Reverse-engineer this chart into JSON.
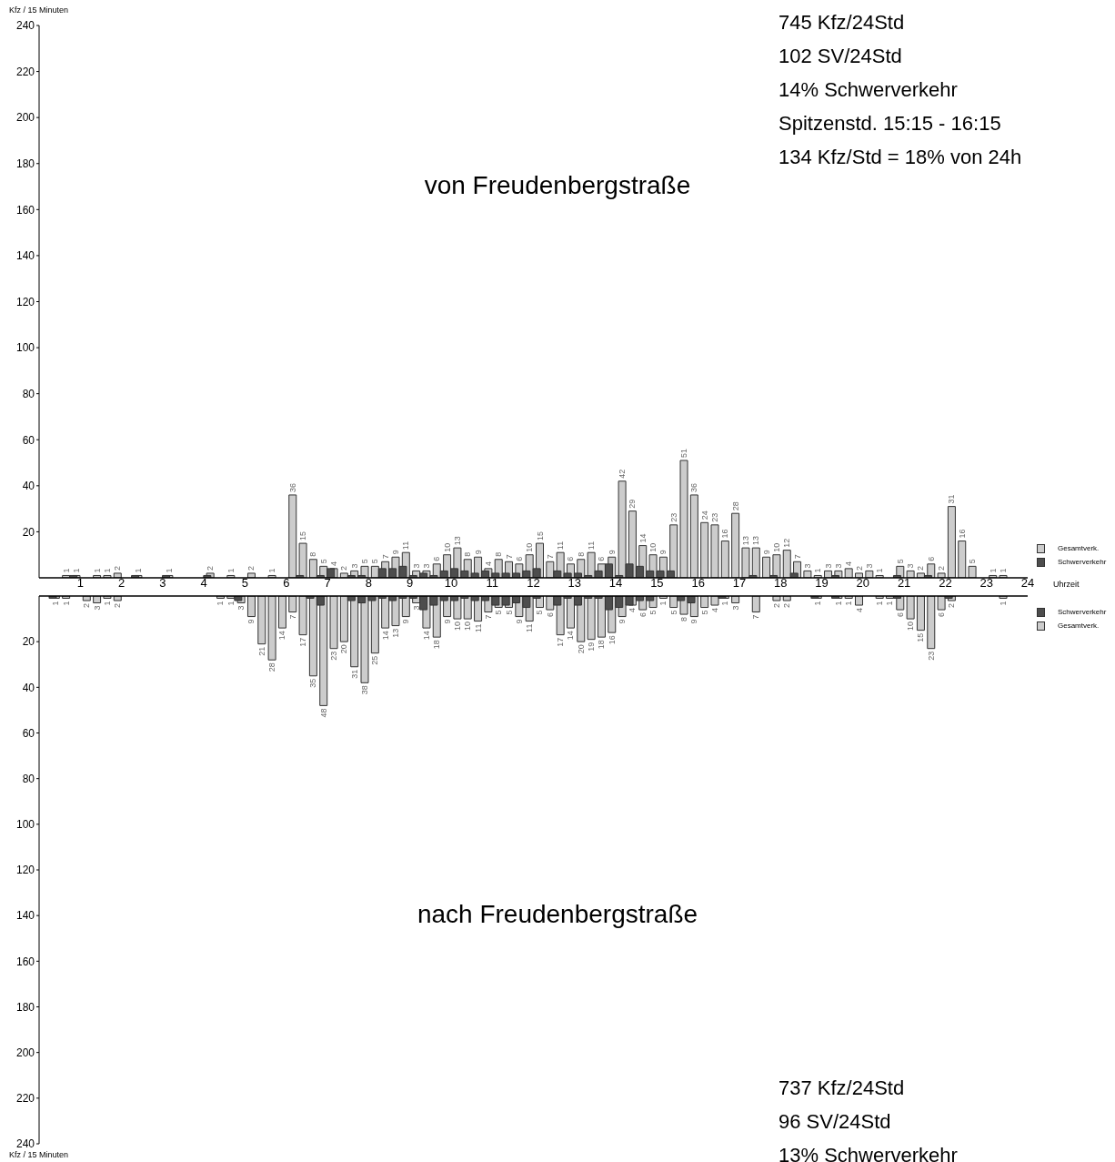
{
  "chart_data": [
    {
      "type": "bar",
      "title": "von Freudenbergstraße",
      "ylabel": "Kfz / 15 Minuten",
      "xlabel": "Uhrzeit",
      "annotations": [
        "745 Kfz/24Std",
        "102 SV/24Std",
        "14% Schwerverkehr",
        "Spitzenstd. 15:15 - 16:15",
        "134 Kfz/Std = 18% von 24h"
      ],
      "x": [
        0.125,
        0.375,
        0.625,
        0.875,
        1.125,
        1.375,
        1.625,
        1.875,
        2.125,
        2.375,
        2.625,
        2.875,
        3.125,
        3.375,
        3.625,
        3.875,
        4.125,
        4.375,
        4.625,
        4.875,
        5.125,
        5.375,
        5.625,
        5.875,
        6.125,
        6.375,
        6.625,
        6.875,
        7.125,
        7.375,
        7.625,
        7.875,
        8.125,
        8.375,
        8.625,
        8.875,
        9.125,
        9.375,
        9.625,
        9.875,
        10.125,
        10.375,
        10.625,
        10.875,
        11.125,
        11.375,
        11.625,
        11.875,
        12.125,
        12.375,
        12.625,
        12.875,
        13.125,
        13.375,
        13.625,
        13.875,
        14.125,
        14.375,
        14.625,
        14.875,
        15.125,
        15.375,
        15.625,
        15.875,
        16.125,
        16.375,
        16.625,
        16.875,
        17.125,
        17.375,
        17.625,
        17.875,
        18.125,
        18.375,
        18.625,
        18.875,
        19.125,
        19.375,
        19.625,
        19.875,
        20.125,
        20.375,
        20.625,
        20.875,
        21.125,
        21.375,
        21.625,
        21.875,
        22.125,
        22.375,
        22.625,
        22.875,
        23.125,
        23.375,
        23.625,
        23.875
      ],
      "series": [
        {
          "name": "Gesamtverk.",
          "type": "bar",
          "color": "#cccccc",
          "values": [
            0,
            0,
            1,
            1,
            0,
            1,
            1,
            2,
            0,
            1,
            0,
            0,
            1,
            0,
            0,
            0,
            2,
            0,
            1,
            0,
            2,
            0,
            1,
            0,
            36,
            15,
            8,
            5,
            4,
            2,
            3,
            5,
            5,
            7,
            9,
            11,
            3,
            3,
            6,
            10,
            13,
            8,
            9,
            4,
            8,
            7,
            6,
            10,
            15,
            7,
            11,
            6,
            8,
            11,
            6,
            9,
            42,
            29,
            14,
            10,
            9,
            23,
            51,
            36,
            24,
            23,
            16,
            28,
            13,
            13,
            9,
            10,
            12,
            7,
            3,
            1,
            3,
            3,
            4,
            2,
            3,
            1,
            0,
            5,
            3,
            2,
            6,
            2,
            31,
            16,
            5,
            0,
            1,
            1,
            0,
            0
          ],
          "value_labels": [
            null,
            null,
            "1",
            "1",
            null,
            "1",
            "1",
            "2",
            null,
            "1",
            null,
            null,
            "1",
            null,
            null,
            null,
            "2",
            null,
            "1",
            null,
            "2",
            null,
            "1",
            null,
            "36",
            "15",
            "8",
            "5",
            "4",
            "2",
            "3",
            "5",
            "5",
            "7",
            "9",
            "11",
            "3",
            "3",
            "6",
            "10",
            "13",
            "8",
            "9",
            "4",
            "8",
            "7",
            "6",
            "10",
            "15",
            "7",
            "11",
            "6",
            "8",
            "11",
            "6",
            "9",
            "42",
            "29",
            "14",
            "10",
            "9",
            "23",
            "51",
            "36",
            "24",
            "23",
            "16",
            "28",
            "13",
            "13",
            "9",
            "10",
            "12",
            "7",
            "3",
            "1",
            "3",
            "3",
            "4",
            "2",
            "3",
            "1",
            null,
            "5",
            "3",
            "2",
            "6",
            "2",
            "31",
            "16",
            "5",
            null,
            "1",
            "1",
            null,
            null
          ]
        },
        {
          "name": "Schwerverkehr",
          "type": "bar",
          "color": "#4d4d4d",
          "values": [
            0,
            0,
            0,
            1,
            0,
            0,
            0,
            0,
            0,
            1,
            0,
            0,
            1,
            0,
            0,
            0,
            1,
            0,
            0,
            0,
            0,
            0,
            0,
            0,
            0,
            1,
            0,
            1,
            4,
            0,
            1,
            1,
            0,
            4,
            4,
            5,
            1,
            2,
            1,
            3,
            4,
            3,
            2,
            3,
            2,
            2,
            2,
            3,
            4,
            0,
            3,
            2,
            2,
            1,
            3,
            6,
            1,
            6,
            5,
            3,
            3,
            3,
            0,
            0,
            0,
            0,
            0,
            0,
            0,
            1,
            0,
            1,
            0,
            2,
            0,
            0,
            0,
            1,
            0,
            0,
            0,
            0,
            0,
            1,
            0,
            0,
            1,
            0,
            0,
            0,
            0,
            0,
            0,
            0,
            0,
            0
          ]
        }
      ],
      "xlim": [
        0,
        24
      ],
      "xticks": [
        1,
        2,
        3,
        4,
        5,
        6,
        7,
        8,
        9,
        10,
        11,
        12,
        13,
        14,
        15,
        16,
        17,
        18,
        19,
        20,
        21,
        22,
        23,
        24
      ],
      "ylim": [
        0,
        240
      ],
      "yticks": [
        20,
        40,
        60,
        80,
        100,
        120,
        140,
        160,
        180,
        200,
        220,
        240
      ],
      "grid": false,
      "legend": "right"
    },
    {
      "type": "bar",
      "title": "nach Freudenbergstraße",
      "ylabel": "Kfz / 15 Minuten",
      "annotations": [
        "737 Kfz/24Std",
        "96 SV/24Std",
        "13% Schwerverkehr"
      ],
      "x": [
        0.125,
        0.375,
        0.625,
        0.875,
        1.125,
        1.375,
        1.625,
        1.875,
        2.125,
        2.375,
        2.625,
        2.875,
        3.125,
        3.375,
        3.625,
        3.875,
        4.125,
        4.375,
        4.625,
        4.875,
        5.125,
        5.375,
        5.625,
        5.875,
        6.125,
        6.375,
        6.625,
        6.875,
        7.125,
        7.375,
        7.625,
        7.875,
        8.125,
        8.375,
        8.625,
        8.875,
        9.125,
        9.375,
        9.625,
        9.875,
        10.125,
        10.375,
        10.625,
        10.875,
        11.125,
        11.375,
        11.625,
        11.875,
        12.125,
        12.375,
        12.625,
        12.875,
        13.125,
        13.375,
        13.625,
        13.875,
        14.125,
        14.375,
        14.625,
        14.875,
        15.125,
        15.375,
        15.625,
        15.875,
        16.125,
        16.375,
        16.625,
        16.875,
        17.125,
        17.375,
        17.625,
        17.875,
        18.125,
        18.375,
        18.625,
        18.875,
        19.125,
        19.375,
        19.625,
        19.875,
        20.125,
        20.375,
        20.625,
        20.875,
        21.125,
        21.375,
        21.625,
        21.875,
        22.125,
        22.375,
        22.625,
        22.875,
        23.125,
        23.375,
        23.625,
        23.875
      ],
      "series": [
        {
          "name": "Schwerverkehr",
          "type": "bar",
          "color": "#4d4d4d",
          "values": [
            0,
            1,
            0,
            0,
            0,
            0,
            0,
            0,
            0,
            0,
            0,
            0,
            0,
            0,
            0,
            0,
            0,
            0,
            0,
            2,
            0,
            0,
            0,
            0,
            0,
            0,
            1,
            4,
            0,
            0,
            2,
            3,
            2,
            1,
            2,
            1,
            1,
            6,
            4,
            2,
            2,
            1,
            2,
            2,
            4,
            4,
            3,
            5,
            1,
            0,
            4,
            1,
            4,
            1,
            1,
            6,
            5,
            4,
            2,
            2,
            0,
            0,
            2,
            3,
            0,
            0,
            1,
            0,
            0,
            0,
            0,
            0,
            0,
            0,
            0,
            1,
            0,
            1,
            0,
            0,
            0,
            0,
            0,
            1,
            0,
            0,
            0,
            0,
            1,
            0,
            0,
            0,
            0,
            0,
            0,
            0
          ]
        },
        {
          "name": "Gesamtverk.",
          "type": "bar",
          "color": "#cccccc",
          "values": [
            0,
            1,
            1,
            0,
            2,
            3,
            1,
            2,
            0,
            0,
            0,
            0,
            0,
            0,
            0,
            0,
            0,
            1,
            1,
            3,
            9,
            21,
            28,
            14,
            7,
            17,
            35,
            48,
            23,
            20,
            31,
            38,
            25,
            14,
            13,
            9,
            3,
            14,
            18,
            9,
            10,
            10,
            11,
            7,
            5,
            5,
            9,
            11,
            5,
            6,
            17,
            14,
            20,
            19,
            18,
            16,
            9,
            4,
            6,
            5,
            1,
            5,
            8,
            9,
            5,
            4,
            1,
            3,
            0,
            7,
            0,
            2,
            2,
            0,
            0,
            1,
            0,
            1,
            1,
            4,
            0,
            1,
            1,
            6,
            10,
            15,
            23,
            6,
            2,
            0,
            0,
            0,
            0,
            1,
            0,
            0
          ],
          "value_labels": [
            null,
            "1",
            "1",
            null,
            "2",
            "3",
            "1",
            "2",
            null,
            null,
            null,
            null,
            null,
            null,
            null,
            null,
            null,
            "1",
            "1",
            "3",
            "9",
            "21",
            "28",
            "14",
            "7",
            "17",
            "35",
            "48",
            "23",
            "20",
            "31",
            "38",
            "25",
            "14",
            "13",
            "9",
            "3",
            "14",
            "18",
            "9",
            "10",
            "10",
            "11",
            "7",
            "5",
            "5",
            "9",
            "11",
            "5",
            "6",
            "17",
            "14",
            "20",
            "19",
            "18",
            "16",
            "9",
            "4",
            "6",
            "5",
            "1",
            "5",
            "8",
            "9",
            "5",
            "4",
            "1",
            "3",
            null,
            "7",
            null,
            "2",
            "2",
            null,
            null,
            "1",
            null,
            "1",
            "1",
            "4",
            null,
            "1",
            "1",
            "6",
            "10",
            "15",
            "23",
            "6",
            "2",
            null,
            null,
            null,
            null,
            "1",
            null,
            null
          ]
        }
      ],
      "xlim": [
        0,
        24
      ],
      "xticks": [
        1,
        2,
        3,
        4,
        5,
        6,
        7,
        8,
        9,
        10,
        11,
        12,
        13,
        14,
        15,
        16,
        17,
        18,
        19,
        20,
        21,
        22,
        23,
        24
      ],
      "ylim": [
        240,
        0
      ],
      "yticks": [
        20,
        40,
        60,
        80,
        100,
        120,
        140,
        160,
        180,
        200,
        220,
        240
      ],
      "grid": false,
      "legend": "right",
      "tick_labels": "y"
    }
  ]
}
